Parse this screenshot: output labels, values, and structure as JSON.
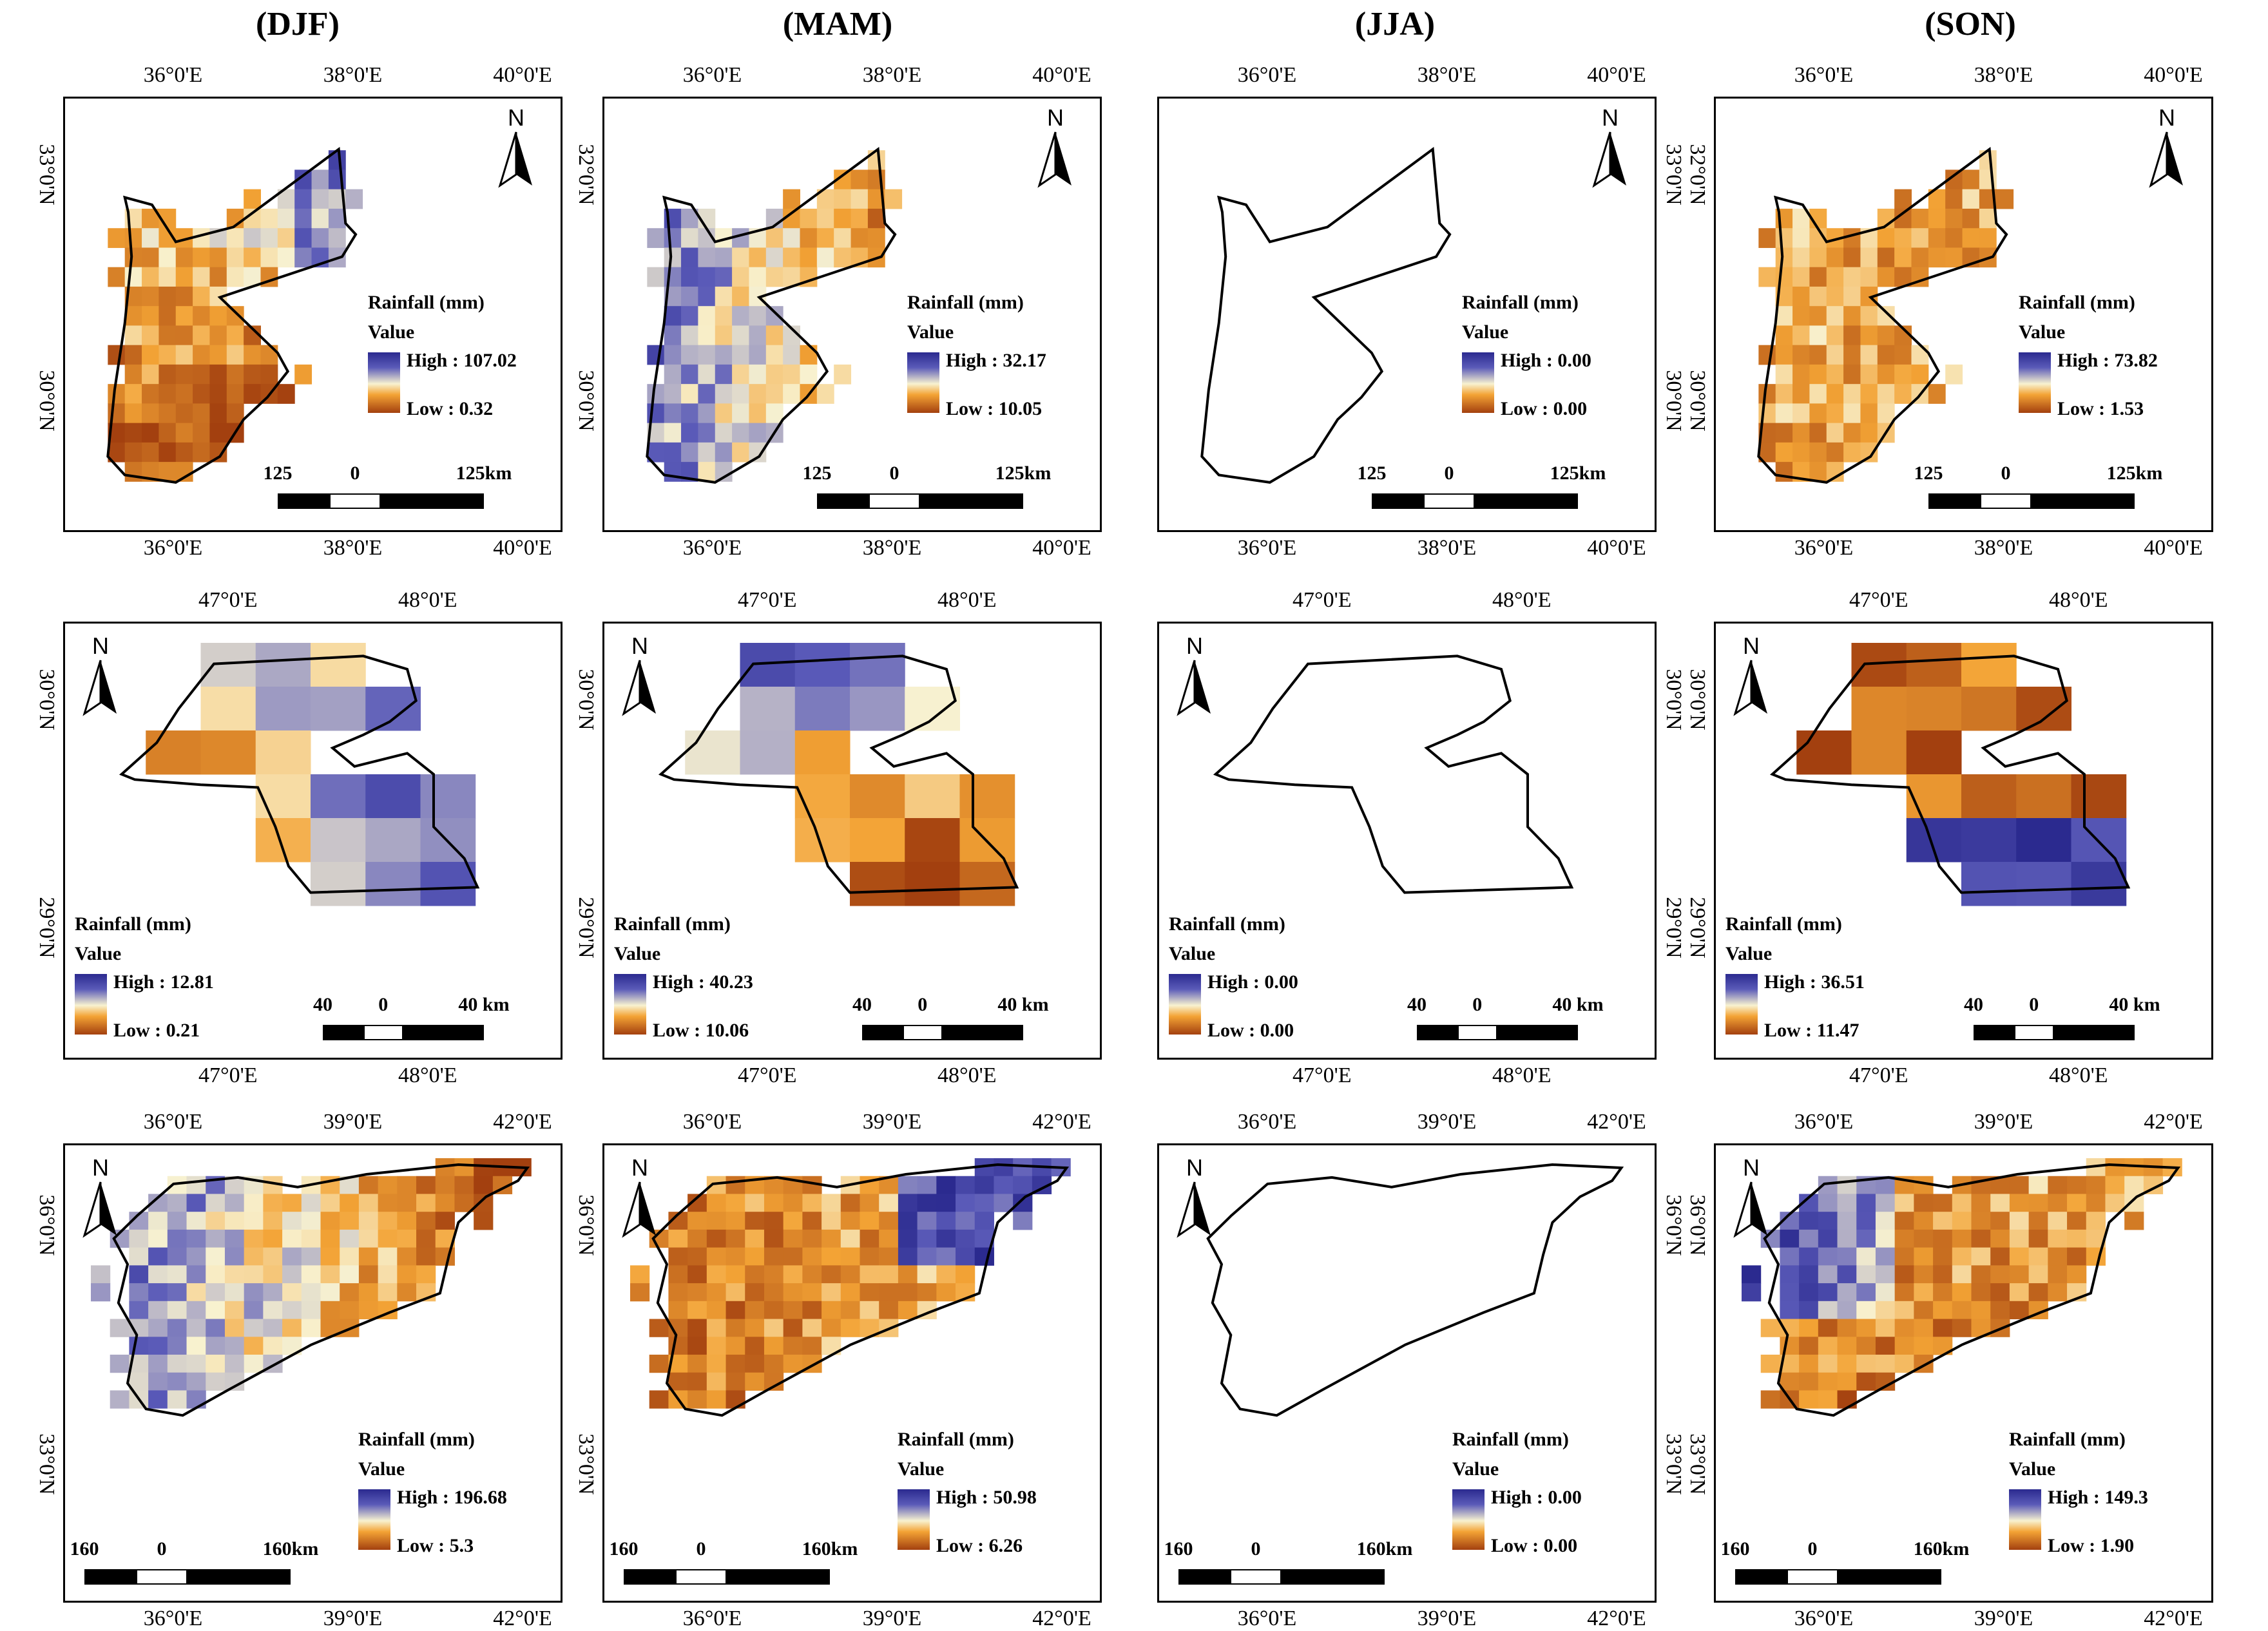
{
  "seasons": [
    "(DJF)",
    "(MAM)",
    "(JJA)",
    "(SON)"
  ],
  "legend_title": "Rainfall (mm)",
  "legend_value": "Value",
  "north_label": "N",
  "colors": {
    "high": "#2b2a8f",
    "mid": "#f8f2d0",
    "low": "#a3400f",
    "outline": "#000000"
  },
  "rows": [
    {
      "region_shape": "jordan",
      "x_ticks": [
        "36°0'E",
        "38°0'E",
        "40°0'E"
      ],
      "y_ticks_left": [
        "33°0'N",
        "30°0'N"
      ],
      "y_ticks_right": [
        "32°0'N",
        "30°0'N"
      ],
      "scale": {
        "left": "125",
        "mid": "0",
        "right": "125km"
      },
      "panels": [
        {
          "season": "(DJF)",
          "high": "High : 107.02",
          "low": "Low : 0.32",
          "mean_level": 0.22,
          "pattern": "south-dry"
        },
        {
          "season": "(MAM)",
          "high": "High : 32.17",
          "low": "Low : 10.05",
          "mean_level": 0.45,
          "pattern": "west-wet"
        },
        {
          "season": "(JJA)",
          "high": "High : 0.00",
          "low": "Low : 0.00",
          "mean_level": null,
          "pattern": "empty"
        },
        {
          "season": "(SON)",
          "high": "High : 73.82",
          "low": "Low : 1.53",
          "mean_level": 0.3,
          "pattern": "mixed"
        }
      ]
    },
    {
      "region_shape": "kuwait",
      "x_ticks": [
        "47°0'E",
        "48°0'E"
      ],
      "y_ticks_left": [
        "30°0'N",
        "29°0'N"
      ],
      "y_ticks_right": [
        "30°0'N",
        "29°0'N"
      ],
      "scale": {
        "left": "40",
        "mid": "0",
        "right": "40 km"
      },
      "panels": [
        {
          "season": "(DJF)",
          "high": "High : 12.81",
          "low": "Low : 0.21",
          "mean_level": 0.45,
          "pattern": "east-wet"
        },
        {
          "season": "(MAM)",
          "high": "High : 40.23",
          "low": "Low : 10.06",
          "mean_level": 0.4,
          "pattern": "north-wet"
        },
        {
          "season": "(JJA)",
          "high": "High : 0.00",
          "low": "Low : 0.00",
          "mean_level": null,
          "pattern": "empty"
        },
        {
          "season": "(SON)",
          "high": "High : 36.51",
          "low": "Low : 11.47",
          "mean_level": 0.3,
          "pattern": "south-wet"
        }
      ]
    },
    {
      "region_shape": "syria",
      "x_ticks": [
        "36°0'E",
        "39°0'E",
        "42°0'E"
      ],
      "y_ticks_left": [
        "36°0'N",
        "33°0'N"
      ],
      "y_ticks_right": [
        "36°0'N",
        "33°0'N"
      ],
      "scale": {
        "left": "160",
        "mid": "0",
        "right": "160km"
      },
      "panels": [
        {
          "season": "(DJF)",
          "high": "High : 196.68",
          "low": "Low : 5.3",
          "mean_level": 0.38,
          "pattern": "west-wet"
        },
        {
          "season": "(MAM)",
          "high": "High : 50.98",
          "low": "Low : 6.26",
          "mean_level": 0.28,
          "pattern": "northeast-wet"
        },
        {
          "season": "(JJA)",
          "high": "High : 0.00",
          "low": "Low : 0.00",
          "mean_level": null,
          "pattern": "empty"
        },
        {
          "season": "(SON)",
          "high": "High : 149.3",
          "low": "Low : 1.90",
          "mean_level": 0.35,
          "pattern": "northwest-wet"
        }
      ]
    }
  ]
}
